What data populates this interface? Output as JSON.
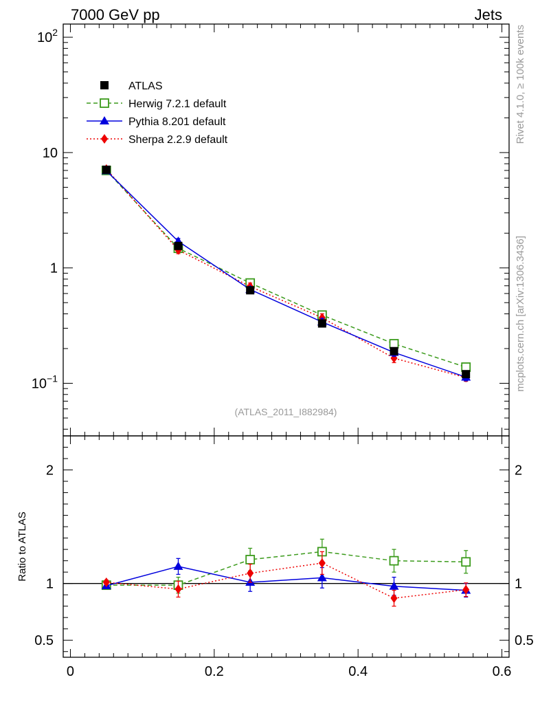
{
  "header": {
    "left": "7000 GeV pp",
    "right": "Jets"
  },
  "side_text": {
    "rivet": "Rivet 4.1.0, ≥ 100k events",
    "mcplots": "mcplots.cern.ch [arXiv:1306.3436]"
  },
  "analysis_label": "(ATLAS_2011_I882984)",
  "colors": {
    "atlas": "#000000",
    "herwig": "#3a9a1a",
    "pythia": "#0000dd",
    "sherpa": "#ee0000",
    "watermark": "#999999"
  },
  "chart_data": [
    {
      "type": "line",
      "scale": "log",
      "title": "",
      "xlabel": "",
      "ylabel": "",
      "xlim": [
        -0.01,
        0.61
      ],
      "ylim": [
        0.035,
        130
      ],
      "y_tick_labels": [
        {
          "value": 0.1,
          "base": "10",
          "exp": "−1"
        },
        {
          "value": 1,
          "base": "1",
          "exp": ""
        },
        {
          "value": 10,
          "base": "10",
          "exp": ""
        },
        {
          "value": 100,
          "base": "10",
          "exp": "2"
        }
      ],
      "legend_position": "top-left",
      "x": [
        0.05,
        0.15,
        0.25,
        0.35,
        0.45,
        0.55
      ],
      "series": [
        {
          "key": "atlas",
          "name": "ATLAS",
          "marker": "square-filled",
          "style": "none",
          "values": [
            7.1,
            1.55,
            0.64,
            0.33,
            0.19,
            0.12
          ],
          "errors": [
            0.3,
            0.1,
            0.04,
            0.02,
            0.012,
            0.008
          ]
        },
        {
          "key": "herwig",
          "name": "Herwig 7.2.1 default",
          "marker": "square-open",
          "style": "dashed",
          "values": [
            7.0,
            1.48,
            0.74,
            0.39,
            0.22,
            0.138
          ],
          "errors": [
            0.2,
            0.08,
            0.05,
            0.03,
            0.018,
            0.01
          ]
        },
        {
          "key": "pythia",
          "name": "Pythia 8.201 default",
          "marker": "triangle",
          "style": "solid",
          "values": [
            6.95,
            1.7,
            0.65,
            0.34,
            0.185,
            0.113
          ],
          "errors": [
            0.2,
            0.1,
            0.04,
            0.025,
            0.014,
            0.008
          ]
        },
        {
          "key": "sherpa",
          "name": "Sherpa 2.2.9 default",
          "marker": "diamond",
          "style": "dotted",
          "values": [
            7.2,
            1.43,
            0.69,
            0.37,
            0.165,
            0.112
          ],
          "errors": [
            0.2,
            0.1,
            0.05,
            0.03,
            0.014,
            0.008
          ]
        }
      ]
    },
    {
      "type": "line",
      "scale": "linear",
      "title": "",
      "xlabel": "",
      "ylabel": "Ratio to ATLAS",
      "xlim": [
        -0.01,
        0.61
      ],
      "ylim": [
        0.35,
        2.3
      ],
      "x_tick_labels": [
        {
          "value": 0,
          "label": "0"
        },
        {
          "value": 0.2,
          "label": "0.2"
        },
        {
          "value": 0.4,
          "label": "0.4"
        },
        {
          "value": 0.6,
          "label": "0.6"
        }
      ],
      "y_tick_labels": [
        {
          "value": 0.5,
          "label": "0.5"
        },
        {
          "value": 1,
          "label": "1"
        },
        {
          "value": 2,
          "label": "2"
        }
      ],
      "reference_line": 1,
      "x": [
        0.05,
        0.15,
        0.25,
        0.35,
        0.45,
        0.55
      ],
      "series": [
        {
          "key": "herwig",
          "name": "Herwig 7.2.1 default",
          "marker": "square-open",
          "style": "dashed",
          "values": [
            0.985,
            0.985,
            1.21,
            1.28,
            1.2,
            1.19
          ],
          "errors": [
            0.02,
            0.07,
            0.1,
            0.11,
            0.1,
            0.1
          ]
        },
        {
          "key": "pythia",
          "name": "Pythia 8.201 default",
          "marker": "triangle",
          "style": "solid",
          "values": [
            0.98,
            1.15,
            1.01,
            1.05,
            0.975,
            0.94
          ],
          "errors": [
            0.02,
            0.07,
            0.08,
            0.09,
            0.08,
            0.06
          ]
        },
        {
          "key": "sherpa",
          "name": "Sherpa 2.2.9 default",
          "marker": "diamond",
          "style": "dotted",
          "values": [
            1.01,
            0.95,
            1.09,
            1.18,
            0.87,
            0.945
          ],
          "errors": [
            0.02,
            0.07,
            0.08,
            0.1,
            0.07,
            0.06
          ]
        }
      ]
    }
  ]
}
